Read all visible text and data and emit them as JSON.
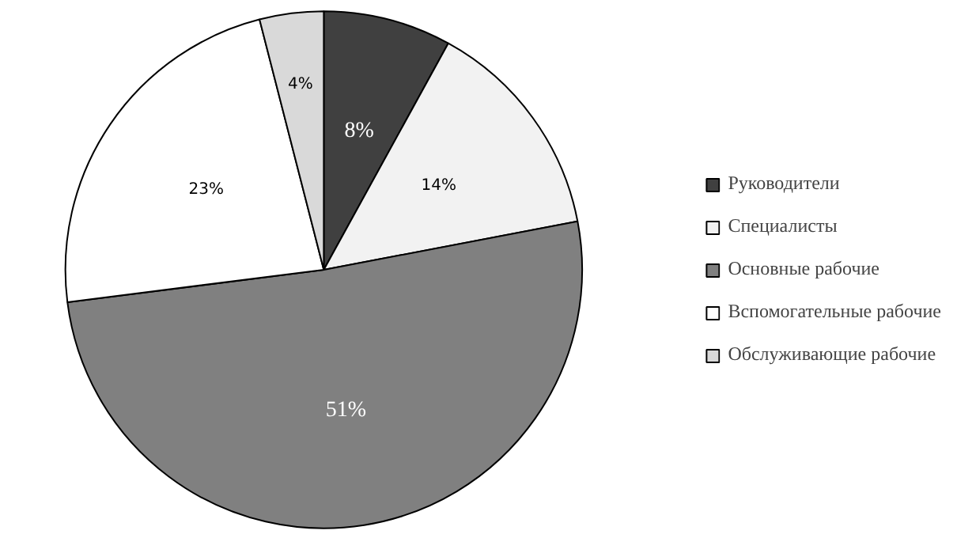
{
  "chart_data": {
    "type": "pie",
    "categories": [
      "Руководители",
      "Специалисты",
      "Основные рабочие",
      "Вспомогательные рабочие",
      "Обслуживающие рабочие"
    ],
    "values": [
      8,
      14,
      51,
      23,
      4
    ],
    "colors": [
      "#404040",
      "#f2f2f2",
      "#808080",
      "#ffffff",
      "#d9d9d9"
    ],
    "value_labels": [
      "8%",
      "14%",
      "51%",
      "23%",
      "4%"
    ],
    "legend": "right"
  }
}
